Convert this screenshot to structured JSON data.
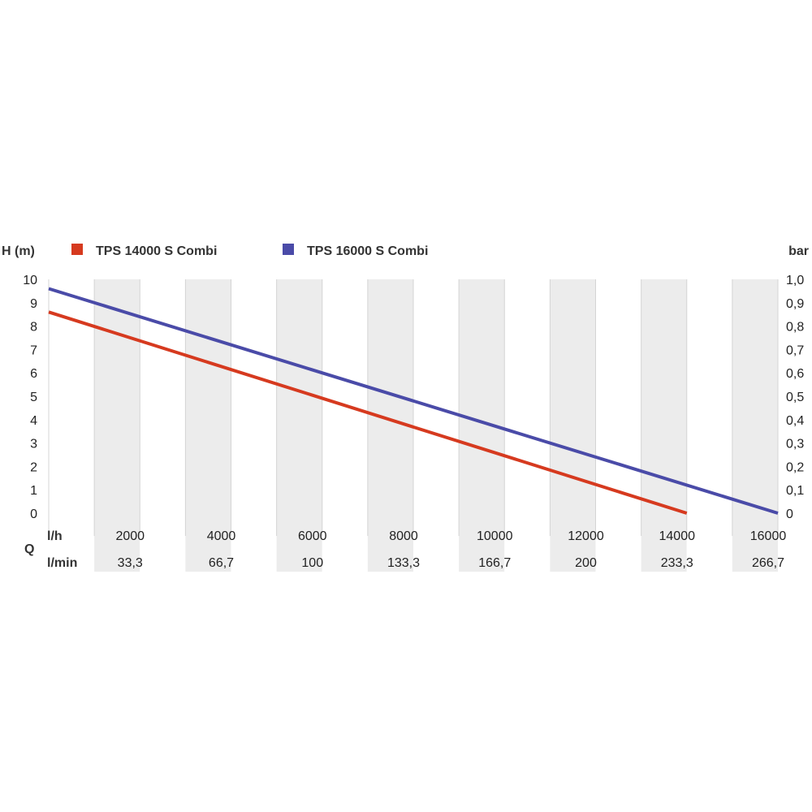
{
  "chart_data": {
    "type": "line",
    "y_left_label": "H (m)",
    "y_right_label": "bar",
    "q_label": "Q",
    "x_unit_label": "l/h",
    "x2_unit_label": "l/min",
    "xlim": [
      0,
      16000
    ],
    "ylim": [
      0,
      10
    ],
    "y_ticks": [
      "0",
      "1",
      "2",
      "3",
      "4",
      "5",
      "6",
      "7",
      "8",
      "9",
      "10"
    ],
    "y_right_ticks": [
      "0",
      "0,1",
      "0,2",
      "0,3",
      "0,4",
      "0,5",
      "0,6",
      "0,7",
      "0,8",
      "0,9",
      "1,0"
    ],
    "x_ticks": [
      {
        "value": 2000,
        "label": "2000"
      },
      {
        "value": 4000,
        "label": "4000"
      },
      {
        "value": 6000,
        "label": "6000"
      },
      {
        "value": 8000,
        "label": "8000"
      },
      {
        "value": 10000,
        "label": "10000"
      },
      {
        "value": 12000,
        "label": "12000"
      },
      {
        "value": 14000,
        "label": "14000"
      },
      {
        "value": 16000,
        "label": "16000"
      }
    ],
    "x2_ticks": [
      {
        "value": 2000,
        "label": "33,3"
      },
      {
        "value": 4000,
        "label": "66,7"
      },
      {
        "value": 6000,
        "label": "100"
      },
      {
        "value": 8000,
        "label": "133,3"
      },
      {
        "value": 10000,
        "label": "166,7"
      },
      {
        "value": 12000,
        "label": "200"
      },
      {
        "value": 14000,
        "label": "233,3"
      },
      {
        "value": 16000,
        "label": "266,7"
      }
    ],
    "grid": "vertical",
    "legend_position": "top-left",
    "series": [
      {
        "name": "TPS 14000 S Combi",
        "color": "#d63a1f",
        "x": [
          0,
          14000
        ],
        "y": [
          8.6,
          0
        ]
      },
      {
        "name": "TPS 16000 S Combi",
        "color": "#4a4ba8",
        "x": [
          0,
          16000
        ],
        "y": [
          9.6,
          0
        ]
      }
    ]
  }
}
